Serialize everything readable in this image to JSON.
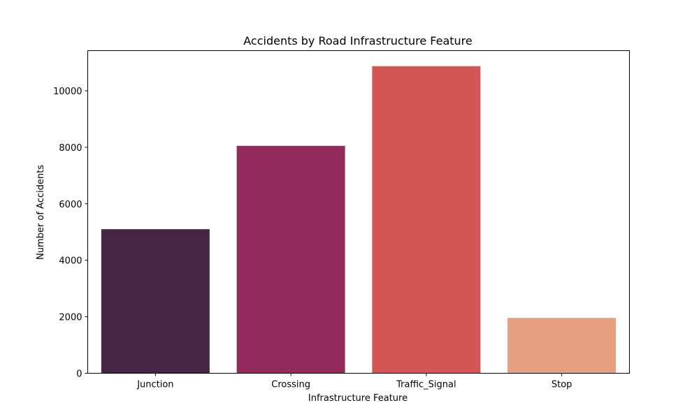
{
  "chart_data": {
    "type": "bar",
    "title": "Accidents by Road Infrastructure Feature",
    "xlabel": "Infrastructure Feature",
    "ylabel": "Number of Accidents",
    "categories": [
      "Junction",
      "Crossing",
      "Traffic_Signal",
      "Stop"
    ],
    "values": [
      5100,
      8050,
      10870,
      1960
    ],
    "colors": [
      "#472544",
      "#922b5c",
      "#d35657",
      "#e4a081"
    ],
    "ylim": [
      0,
      11420
    ],
    "yticks": [
      0,
      2000,
      4000,
      6000,
      8000,
      10000
    ],
    "grid": false,
    "legend": "none"
  }
}
